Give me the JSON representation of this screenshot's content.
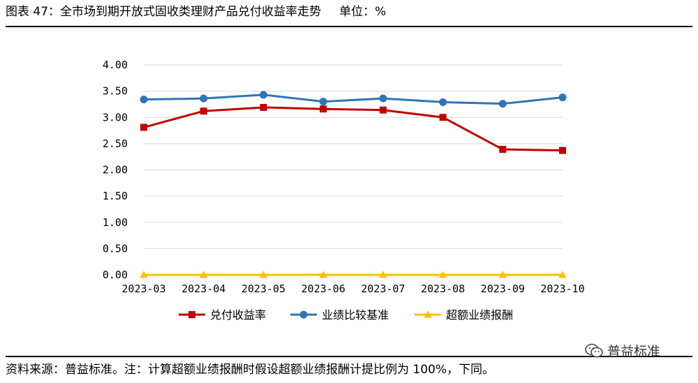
{
  "header": {
    "title": "图表 47：全市场到期开放式固收类理财产品兑付收益率走势",
    "unit": "单位：%"
  },
  "footer": {
    "source": "资料来源：普益标准。注：计算超额业绩报酬时假设超额业绩报酬计提比例为 100%，下同。"
  },
  "watermark": {
    "text": "普益标准",
    "icon": "wechat-icon"
  },
  "chart_data": {
    "type": "line",
    "categories": [
      "2023-03",
      "2023-04",
      "2023-05",
      "2023-06",
      "2023-07",
      "2023-08",
      "2023-09",
      "2023-10"
    ],
    "series": [
      {
        "name": "兑付收益率",
        "values": [
          2.81,
          3.12,
          3.19,
          3.16,
          3.14,
          3.0,
          2.39,
          2.37
        ],
        "color": "#c00000",
        "marker": "square"
      },
      {
        "name": "业绩比较基准",
        "values": [
          3.34,
          3.36,
          3.43,
          3.3,
          3.36,
          3.29,
          3.26,
          3.38
        ],
        "color": "#2e75b6",
        "marker": "circle"
      },
      {
        "name": "超额业绩报酬",
        "values": [
          0.0,
          0.0,
          0.0,
          0.0,
          0.0,
          0.0,
          0.0,
          0.0
        ],
        "color": "#ffc000",
        "marker": "triangle"
      }
    ],
    "yticks": [
      "0.00",
      "0.50",
      "1.00",
      "1.50",
      "2.00",
      "2.50",
      "3.00",
      "3.50",
      "4.00"
    ],
    "ylim": [
      0,
      4
    ],
    "grid": true,
    "legend": "bottom"
  }
}
